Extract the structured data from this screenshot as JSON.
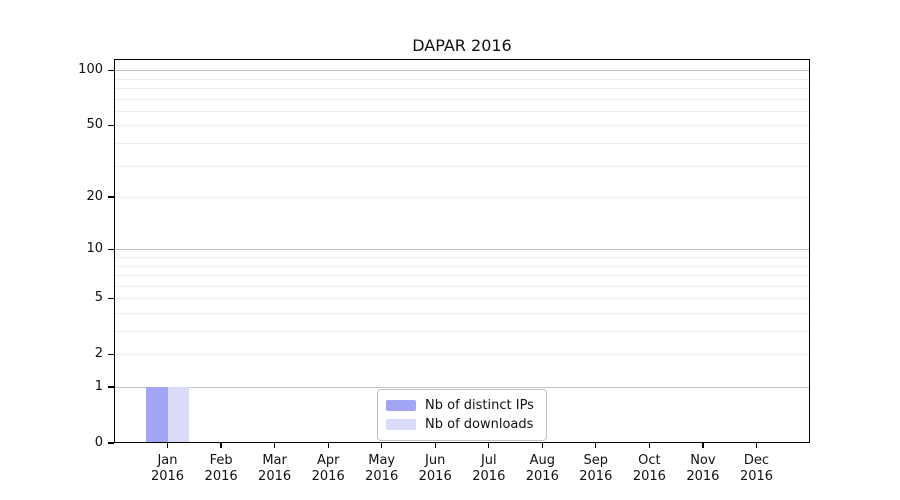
{
  "chart_data": {
    "type": "bar",
    "title": "DAPAR 2016",
    "categories": [
      "Jan 2016",
      "Feb 2016",
      "Mar 2016",
      "Apr 2016",
      "May 2016",
      "Jun 2016",
      "Jul 2016",
      "Aug 2016",
      "Sep 2016",
      "Oct 2016",
      "Nov 2016",
      "Dec 2016"
    ],
    "series": [
      {
        "name": "Nb of distinct IPs",
        "color": "#a2a4f4",
        "values": [
          1,
          0,
          0,
          0,
          0,
          0,
          0,
          0,
          0,
          0,
          0,
          0
        ]
      },
      {
        "name": "Nb of downloads",
        "color": "#d9dbf9",
        "values": [
          1,
          0,
          0,
          0,
          0,
          0,
          0,
          0,
          0,
          0,
          0,
          0
        ]
      }
    ],
    "xlabel": "",
    "ylabel": "",
    "yscale": "log10(1+x)",
    "ylim": [
      0,
      115
    ],
    "y_tick_labels": [
      0,
      1,
      2,
      5,
      10,
      20,
      50,
      100
    ],
    "y_minor_gridlines": [
      3,
      4,
      6,
      7,
      8,
      9,
      30,
      40,
      60,
      70,
      80,
      90
    ],
    "y_emphasis_gridlines": [
      1,
      10,
      100
    ],
    "grid": "horizontal",
    "legend_position": "inside-bottom-center"
  },
  "colors": {
    "background": "#ffffff",
    "axis_frame": "#000000",
    "grid_minor": "#ededed",
    "grid_emphasis": "#c4c4c4",
    "legend_border": "#c0c0c0",
    "text": "#111111",
    "bar_distinct_ips": "#a2a4f4",
    "bar_downloads": "#d9dbf9"
  }
}
